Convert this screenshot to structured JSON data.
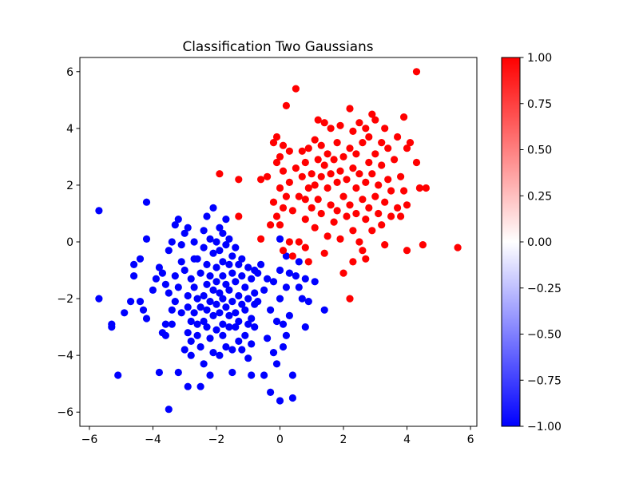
{
  "chart_data": {
    "type": "scatter",
    "title": "Classification Two Gaussians",
    "xlabel": "",
    "ylabel": "",
    "xlim": [
      -6.3,
      6.2
    ],
    "ylim": [
      -6.5,
      6.5
    ],
    "xticks": [
      -6,
      -4,
      -2,
      0,
      2,
      4,
      6
    ],
    "yticks": [
      -6,
      -4,
      -2,
      0,
      2,
      4,
      6
    ],
    "grid": false,
    "colormap": "bwr",
    "colorbar": {
      "range": [
        -1.0,
        1.0
      ],
      "ticks": [
        1.0,
        0.75,
        0.5,
        0.25,
        0.0,
        -0.25,
        -0.5,
        -0.75,
        -1.0
      ],
      "tick_labels": [
        "1.00",
        "0.75",
        "0.50",
        "0.25",
        "0.00",
        "−0.25",
        "−0.50",
        "−0.75",
        "−1.00"
      ]
    },
    "colors": {
      "negative": "#0000ff",
      "positive": "#ff0000",
      "mid": "#ffffff"
    },
    "series": [
      {
        "value": -1,
        "points": [
          [
            -5.7,
            1.1
          ],
          [
            -5.7,
            -2.0
          ],
          [
            -5.3,
            -2.9
          ],
          [
            -5.3,
            -3.0
          ],
          [
            -5.1,
            -4.7
          ],
          [
            -4.9,
            -2.5
          ],
          [
            -4.7,
            -2.1
          ],
          [
            -4.6,
            -1.2
          ],
          [
            -4.6,
            -0.8
          ],
          [
            -4.4,
            -0.6
          ],
          [
            -4.4,
            -2.1
          ],
          [
            -4.3,
            -2.4
          ],
          [
            -4.2,
            0.1
          ],
          [
            -4.2,
            1.4
          ],
          [
            -4.2,
            -2.7
          ],
          [
            -4.0,
            -1.7
          ],
          [
            -3.9,
            -1.3
          ],
          [
            -3.8,
            -4.6
          ],
          [
            -3.8,
            -0.9
          ],
          [
            -3.7,
            -1.1
          ],
          [
            -3.7,
            -3.2
          ],
          [
            -3.6,
            -1.5
          ],
          [
            -3.6,
            -2.9
          ],
          [
            -3.6,
            -3.3
          ],
          [
            -3.5,
            -5.9
          ],
          [
            -3.5,
            -0.3
          ],
          [
            -3.5,
            -1.8
          ],
          [
            -3.4,
            0.0
          ],
          [
            -3.4,
            -2.4
          ],
          [
            -3.4,
            -2.9
          ],
          [
            -3.3,
            0.6
          ],
          [
            -3.3,
            -1.2
          ],
          [
            -3.3,
            -2.1
          ],
          [
            -3.2,
            0.8
          ],
          [
            -3.2,
            -4.6
          ],
          [
            -3.2,
            -1.6
          ],
          [
            -3.1,
            -0.1
          ],
          [
            -3.1,
            -0.7
          ],
          [
            -3.1,
            -2.5
          ],
          [
            -3.0,
            0.3
          ],
          [
            -3.0,
            -1.0
          ],
          [
            -3.0,
            -3.8
          ],
          [
            -2.9,
            -1.9
          ],
          [
            -2.9,
            -2.3
          ],
          [
            -2.9,
            -3.2
          ],
          [
            -2.9,
            -5.1
          ],
          [
            -2.9,
            0.5
          ],
          [
            -2.8,
            -1.3
          ],
          [
            -2.8,
            -2.8
          ],
          [
            -2.8,
            -3.5
          ],
          [
            -2.8,
            -4.0
          ],
          [
            -2.7,
            0.0
          ],
          [
            -2.7,
            -0.6
          ],
          [
            -2.7,
            -1.6
          ],
          [
            -2.7,
            -2.5
          ],
          [
            -2.6,
            -2.0
          ],
          [
            -2.6,
            -2.9
          ],
          [
            -2.6,
            -3.3
          ],
          [
            -2.6,
            -0.6
          ],
          [
            -2.5,
            -1.1
          ],
          [
            -2.5,
            -2.3
          ],
          [
            -2.5,
            -3.7
          ],
          [
            -2.5,
            -5.1
          ],
          [
            -2.4,
            0.4
          ],
          [
            -2.4,
            -0.2
          ],
          [
            -2.4,
            -1.9
          ],
          [
            -2.4,
            -2.8
          ],
          [
            -2.4,
            -4.3
          ],
          [
            -2.3,
            0.9
          ],
          [
            -2.3,
            -0.8
          ],
          [
            -2.3,
            -1.5
          ],
          [
            -2.3,
            -2.4
          ],
          [
            -2.3,
            -3.0
          ],
          [
            -2.2,
            0.1
          ],
          [
            -2.2,
            -1.2
          ],
          [
            -2.2,
            -2.1
          ],
          [
            -2.2,
            -3.4
          ],
          [
            -2.2,
            -4.7
          ],
          [
            -2.1,
            1.2
          ],
          [
            -2.1,
            -0.4
          ],
          [
            -2.1,
            -1.7
          ],
          [
            -2.1,
            -2.6
          ],
          [
            -2.1,
            -3.9
          ],
          [
            -2.0,
            0.0
          ],
          [
            -2.0,
            -0.9
          ],
          [
            -2.0,
            -1.4
          ],
          [
            -2.0,
            -2.2
          ],
          [
            -2.0,
            -3.1
          ],
          [
            -1.9,
            0.5
          ],
          [
            -1.9,
            -0.3
          ],
          [
            -1.9,
            -1.8
          ],
          [
            -1.9,
            -2.5
          ],
          [
            -1.9,
            -4.0
          ],
          [
            -1.8,
            0.3
          ],
          [
            -1.8,
            -0.7
          ],
          [
            -1.8,
            -1.2
          ],
          [
            -1.8,
            -2.0
          ],
          [
            -1.8,
            -2.9
          ],
          [
            -1.8,
            -3.3
          ],
          [
            -1.7,
            0.8
          ],
          [
            -1.7,
            -0.1
          ],
          [
            -1.7,
            -1.5
          ],
          [
            -1.7,
            -2.3
          ],
          [
            -1.7,
            -3.7
          ],
          [
            -1.6,
            0.1
          ],
          [
            -1.6,
            -0.8
          ],
          [
            -1.6,
            -1.7
          ],
          [
            -1.6,
            -2.6
          ],
          [
            -1.6,
            -3.0
          ],
          [
            -1.5,
            -0.5
          ],
          [
            -1.5,
            -1.1
          ],
          [
            -1.5,
            -2.1
          ],
          [
            -1.5,
            -3.8
          ],
          [
            -1.5,
            -4.6
          ],
          [
            -1.4,
            -0.2
          ],
          [
            -1.4,
            -1.4
          ],
          [
            -1.4,
            -2.5
          ],
          [
            -1.4,
            -3.0
          ],
          [
            -1.3,
            -0.8
          ],
          [
            -1.3,
            -1.9
          ],
          [
            -1.3,
            -2.8
          ],
          [
            -1.3,
            -3.5
          ],
          [
            -1.2,
            -0.6
          ],
          [
            -1.2,
            -1.2
          ],
          [
            -1.2,
            -2.2
          ],
          [
            -1.2,
            -3.8
          ],
          [
            -1.1,
            -1.6
          ],
          [
            -1.1,
            -2.4
          ],
          [
            -1.1,
            -3.3
          ],
          [
            -1.0,
            -0.9
          ],
          [
            -1.0,
            -2.0
          ],
          [
            -1.0,
            -2.9
          ],
          [
            -1.0,
            -4.1
          ],
          [
            -0.9,
            -1.3
          ],
          [
            -0.9,
            -2.7
          ],
          [
            -0.9,
            -3.6
          ],
          [
            -0.9,
            -4.7
          ],
          [
            -0.8,
            -1.0
          ],
          [
            -0.8,
            -2.2
          ],
          [
            -0.8,
            -3.0
          ],
          [
            -0.8,
            -1.8
          ],
          [
            -0.7,
            -1.1
          ],
          [
            -0.7,
            -2.1
          ],
          [
            -0.6,
            -0.8
          ],
          [
            -0.5,
            -4.7
          ],
          [
            -0.5,
            -1.7
          ],
          [
            -0.4,
            -1.3
          ],
          [
            -0.4,
            -3.4
          ],
          [
            -0.3,
            -5.3
          ],
          [
            -0.3,
            -2.4
          ],
          [
            -0.2,
            -3.9
          ],
          [
            -0.2,
            -1.4
          ],
          [
            -0.1,
            -2.8
          ],
          [
            -0.1,
            -4.3
          ],
          [
            -0.0,
            -5.6
          ],
          [
            0.0,
            0.1
          ],
          [
            0.0,
            -1.0
          ],
          [
            0.0,
            -2.0
          ],
          [
            0.1,
            -2.9
          ],
          [
            0.1,
            -3.7
          ],
          [
            0.2,
            -0.5
          ],
          [
            0.2,
            -1.6
          ],
          [
            0.2,
            -3.3
          ],
          [
            0.3,
            -2.6
          ],
          [
            0.3,
            -1.1
          ],
          [
            0.4,
            -4.7
          ],
          [
            0.4,
            -5.5
          ],
          [
            0.5,
            -1.2
          ],
          [
            0.6,
            -0.7
          ],
          [
            0.6,
            -1.6
          ],
          [
            0.7,
            -2.0
          ],
          [
            0.8,
            -3.0
          ],
          [
            0.8,
            -1.3
          ],
          [
            0.9,
            -2.1
          ],
          [
            1.1,
            -1.4
          ],
          [
            1.4,
            -2.4
          ]
        ]
      },
      {
        "value": 1,
        "points": [
          [
            -1.9,
            2.4
          ],
          [
            -1.3,
            2.2
          ],
          [
            -1.3,
            0.9
          ],
          [
            -0.6,
            2.2
          ],
          [
            -0.6,
            0.1
          ],
          [
            -0.4,
            2.3
          ],
          [
            -0.3,
            0.6
          ],
          [
            -0.2,
            1.4
          ],
          [
            -0.2,
            3.5
          ],
          [
            -0.1,
            3.7
          ],
          [
            -0.1,
            0.9
          ],
          [
            -0.1,
            2.8
          ],
          [
            0.0,
            1.9
          ],
          [
            0.0,
            0.6
          ],
          [
            0.0,
            3.0
          ],
          [
            0.1,
            1.2
          ],
          [
            0.1,
            -0.3
          ],
          [
            0.1,
            2.5
          ],
          [
            0.1,
            3.4
          ],
          [
            0.2,
            4.8
          ],
          [
            0.2,
            1.6
          ],
          [
            0.3,
            0.0
          ],
          [
            0.3,
            2.1
          ],
          [
            0.3,
            3.2
          ],
          [
            0.4,
            1.1
          ],
          [
            0.4,
            -0.5
          ],
          [
            0.5,
            5.4
          ],
          [
            0.5,
            2.6
          ],
          [
            0.6,
            0.0
          ],
          [
            0.6,
            1.6
          ],
          [
            0.7,
            3.2
          ],
          [
            0.7,
            2.3
          ],
          [
            0.8,
            0.8
          ],
          [
            0.8,
            1.5
          ],
          [
            0.8,
            -0.2
          ],
          [
            0.8,
            2.8
          ],
          [
            0.9,
            3.3
          ],
          [
            0.9,
            1.9
          ],
          [
            0.9,
            -0.7
          ],
          [
            1.0,
            2.4
          ],
          [
            1.0,
            1.2
          ],
          [
            1.1,
            3.6
          ],
          [
            1.1,
            2.0
          ],
          [
            1.1,
            0.5
          ],
          [
            1.2,
            2.9
          ],
          [
            1.2,
            1.5
          ],
          [
            1.2,
            4.3
          ],
          [
            1.3,
            3.4
          ],
          [
            1.3,
            2.3
          ],
          [
            1.3,
            1.0
          ],
          [
            1.4,
            4.2
          ],
          [
            1.4,
            2.7
          ],
          [
            1.4,
            -0.4
          ],
          [
            1.5,
            1.9
          ],
          [
            1.5,
            3.1
          ],
          [
            1.5,
            0.2
          ],
          [
            1.6,
            2.4
          ],
          [
            1.6,
            4.0
          ],
          [
            1.6,
            1.3
          ],
          [
            1.7,
            2.9
          ],
          [
            1.7,
            0.7
          ],
          [
            1.8,
            2.1
          ],
          [
            1.8,
            3.5
          ],
          [
            1.8,
            1.1
          ],
          [
            1.9,
            2.5
          ],
          [
            1.9,
            4.1
          ],
          [
            1.9,
            0.1
          ],
          [
            2.0,
            1.6
          ],
          [
            2.0,
            3.0
          ],
          [
            2.0,
            -1.1
          ],
          [
            2.1,
            2.2
          ],
          [
            2.1,
            0.9
          ],
          [
            2.2,
            4.7
          ],
          [
            2.2,
            3.3
          ],
          [
            2.2,
            1.3
          ],
          [
            2.2,
            -2.0
          ],
          [
            2.3,
            2.6
          ],
          [
            2.3,
            0.4
          ],
          [
            2.3,
            3.9
          ],
          [
            2.3,
            -0.7
          ],
          [
            2.4,
            1.9
          ],
          [
            2.4,
            3.1
          ],
          [
            2.4,
            1.0
          ],
          [
            2.5,
            2.4
          ],
          [
            2.5,
            4.2
          ],
          [
            2.5,
            0.0
          ],
          [
            2.6,
            1.5
          ],
          [
            2.6,
            3.5
          ],
          [
            2.6,
            -0.3
          ],
          [
            2.7,
            2.1
          ],
          [
            2.7,
            4.0
          ],
          [
            2.7,
            0.8
          ],
          [
            2.7,
            -0.6
          ],
          [
            2.8,
            2.8
          ],
          [
            2.8,
            1.2
          ],
          [
            2.8,
            3.7
          ],
          [
            2.9,
            4.5
          ],
          [
            2.9,
            2.4
          ],
          [
            2.9,
            0.4
          ],
          [
            3.0,
            1.6
          ],
          [
            3.0,
            3.1
          ],
          [
            3.0,
            4.3
          ],
          [
            3.1,
            2.0
          ],
          [
            3.1,
            1.0
          ],
          [
            3.2,
            3.5
          ],
          [
            3.2,
            2.7
          ],
          [
            3.2,
            0.6
          ],
          [
            3.3,
            1.4
          ],
          [
            3.3,
            4.0
          ],
          [
            3.3,
            -0.1
          ],
          [
            3.4,
            2.2
          ],
          [
            3.4,
            3.3
          ],
          [
            3.5,
            1.8
          ],
          [
            3.5,
            0.9
          ],
          [
            3.6,
            2.9
          ],
          [
            3.7,
            3.7
          ],
          [
            3.7,
            1.2
          ],
          [
            3.8,
            2.3
          ],
          [
            3.8,
            0.9
          ],
          [
            3.9,
            4.4
          ],
          [
            3.9,
            1.8
          ],
          [
            4.0,
            3.3
          ],
          [
            4.0,
            1.3
          ],
          [
            4.0,
            -0.3
          ],
          [
            4.1,
            3.5
          ],
          [
            4.3,
            2.8
          ],
          [
            4.3,
            6.0
          ],
          [
            4.4,
            1.9
          ],
          [
            4.5,
            -0.1
          ],
          [
            4.6,
            1.9
          ],
          [
            5.6,
            -0.2
          ]
        ]
      }
    ]
  }
}
